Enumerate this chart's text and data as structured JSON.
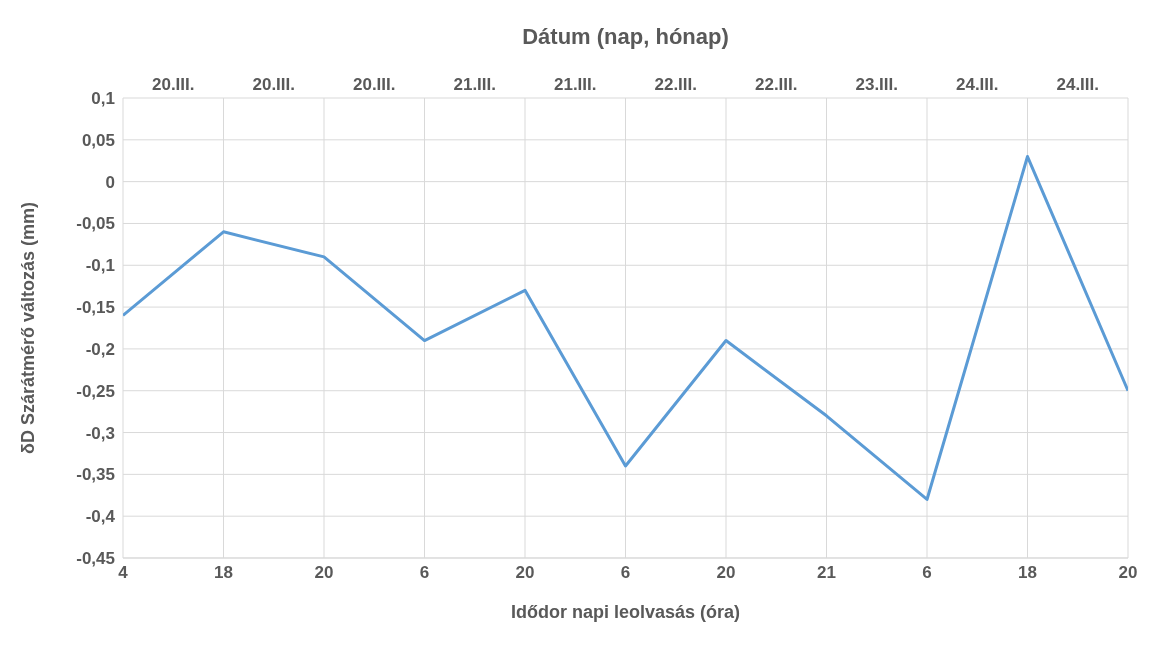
{
  "chart_data": {
    "type": "line",
    "xlabel": "Idődor napi leolvasás (óra)",
    "ylabel": "δD Szárátmérő változás (mm)",
    "x2label": "Dátum (nap, hónap)",
    "categories": [
      "4",
      "18",
      "20",
      "6",
      "20",
      "6",
      "20",
      "21",
      "6",
      "18",
      "20"
    ],
    "series": [
      {
        "color": "#5b9bd5",
        "values": [
          -0.16,
          -0.06,
          -0.09,
          -0.19,
          -0.13,
          -0.34,
          -0.19,
          -0.28,
          -0.38,
          0.03,
          -0.25
        ]
      }
    ],
    "ylim": [
      -0.45,
      0.1
    ],
    "yticks": [
      {
        "value": 0.1,
        "label": "0,1"
      },
      {
        "value": 0.05,
        "label": "0,05"
      },
      {
        "value": 0,
        "label": "0"
      },
      {
        "value": -0.05,
        "label": "-0,05"
      },
      {
        "value": -0.1,
        "label": "-0,1"
      },
      {
        "value": -0.15,
        "label": "-0,15"
      },
      {
        "value": -0.2,
        "label": "-0,2"
      },
      {
        "value": -0.25,
        "label": "-0,25"
      },
      {
        "value": -0.3,
        "label": "-0,3"
      },
      {
        "value": -0.35,
        "label": "-0,35"
      },
      {
        "value": -0.4,
        "label": "-0,4"
      },
      {
        "value": -0.45,
        "label": "-0,45"
      }
    ],
    "annotations": [
      "20.III.",
      "20.III.",
      "20.III.",
      "21.III.",
      "21.III.",
      "22.III.",
      "22.III.",
      "23.III.",
      "24.III.",
      "24.III."
    ],
    "grid": true,
    "legend": false,
    "marker": "none",
    "line_style": "solid"
  }
}
